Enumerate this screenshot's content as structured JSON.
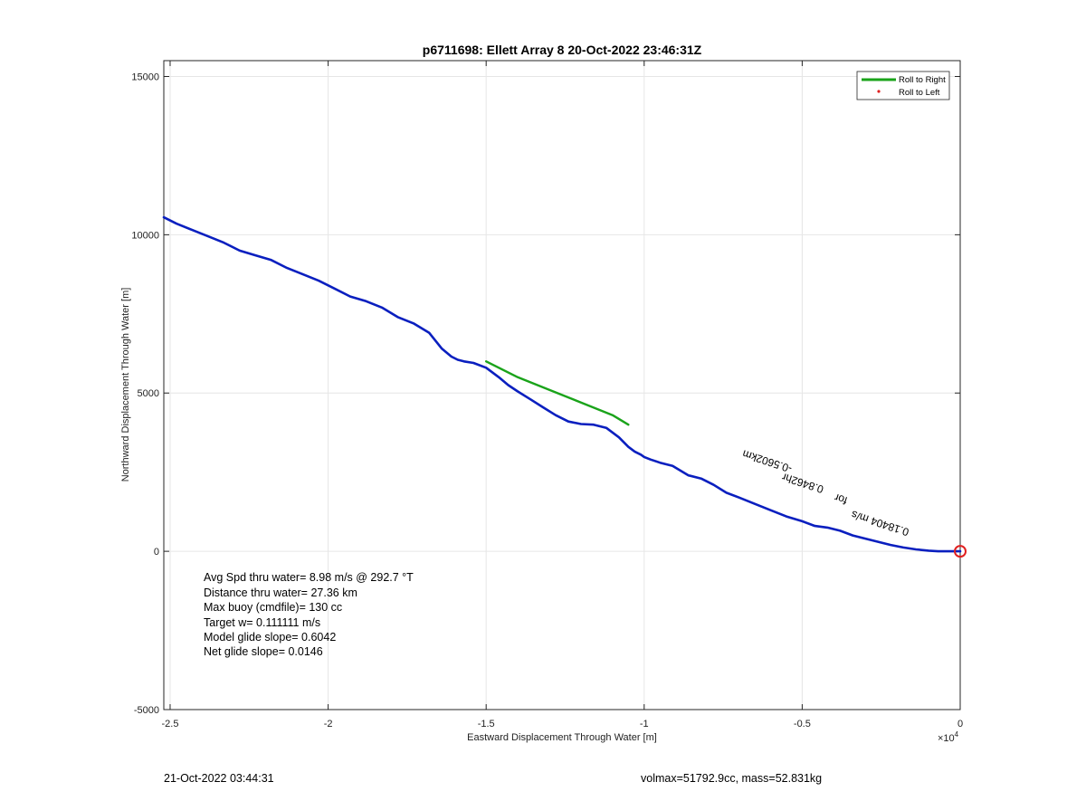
{
  "chart_data": {
    "type": "line",
    "title": "p6711698: Ellett Array 8 20-Oct-2022 23:46:31Z",
    "xlabel": "Eastward Displacement Through Water [m]",
    "ylabel": "Northward Displacement Through Water [m]",
    "x_multiplier_label": "×10",
    "x_multiplier_exponent": "4",
    "xlim": [
      -25200,
      0
    ],
    "ylim": [
      -5000,
      15500
    ],
    "grid": true,
    "legend_position": "top-right",
    "x_ticks": [
      {
        "value": -25000,
        "label": "-2.5"
      },
      {
        "value": -20000,
        "label": "-2"
      },
      {
        "value": -15000,
        "label": "-1.5"
      },
      {
        "value": -10000,
        "label": "-1"
      },
      {
        "value": -5000,
        "label": "-0.5"
      },
      {
        "value": 0,
        "label": "0"
      }
    ],
    "y_ticks": [
      {
        "value": -5000,
        "label": "-5000"
      },
      {
        "value": 0,
        "label": "0"
      },
      {
        "value": 5000,
        "label": "5000"
      },
      {
        "value": 10000,
        "label": "10000"
      },
      {
        "value": 15000,
        "label": "15000"
      }
    ],
    "legend": [
      {
        "label": "Roll to Right",
        "color": "#1aa31a",
        "marker": "line"
      },
      {
        "label": "Roll to Left",
        "color": "#e02020",
        "marker": "dot"
      }
    ],
    "series": [
      {
        "color": "#0a1fbf",
        "x": [
          -25200,
          -24800,
          -24300,
          -23800,
          -23300,
          -22800,
          -22300,
          -21800,
          -21300,
          -20800,
          -20300,
          -19800,
          -19300,
          -18800,
          -18300,
          -17800,
          -17300,
          -16800,
          -16400,
          -16100,
          -15900,
          -15700,
          -15400,
          -15000,
          -14600,
          -14300,
          -14000,
          -13600,
          -13200,
          -12800,
          -12400,
          -12000,
          -11600,
          -11200,
          -10800,
          -10500,
          -10300,
          -10100,
          -10000,
          -9800,
          -9500,
          -9100,
          -8600,
          -8200,
          -7800,
          -7400,
          -7000,
          -6500,
          -6000,
          -5500,
          -5000,
          -4600,
          -4200,
          -3800,
          -3400,
          -3000,
          -2600,
          -2200,
          -1800,
          -1400,
          -1000,
          -700,
          -400,
          -150,
          0
        ],
        "y": [
          10550,
          10350,
          10150,
          9950,
          9750,
          9500,
          9350,
          9200,
          8950,
          8750,
          8550,
          8300,
          8050,
          7900,
          7700,
          7400,
          7200,
          6900,
          6400,
          6150,
          6050,
          6000,
          5950,
          5800,
          5500,
          5250,
          5050,
          4800,
          4550,
          4300,
          4100,
          4020,
          4000,
          3900,
          3600,
          3300,
          3150,
          3050,
          2980,
          2900,
          2800,
          2700,
          2400,
          2300,
          2100,
          1850,
          1700,
          1500,
          1300,
          1100,
          950,
          800,
          750,
          650,
          500,
          400,
          300,
          200,
          120,
          60,
          20,
          0,
          0,
          0,
          0
        ]
      },
      {
        "name": "Roll to Right",
        "color": "#1aa31a",
        "x": [
          -15000,
          -14000,
          -13000,
          -12000,
          -11000,
          -10500
        ],
        "y": [
          6000,
          5500,
          5100,
          4700,
          4300,
          4000
        ]
      }
    ],
    "annotations": [
      {
        "text": "-0.5602km",
        "x": -5300,
        "y": 2700,
        "rotation_deg": 18
      },
      {
        "text": "0.8462hr",
        "x": -4300,
        "y": 2050,
        "rotation_deg": 18
      },
      {
        "text": "for",
        "x": -3550,
        "y": 1700,
        "rotation_deg": 18
      },
      {
        "text": "0.18404 m/s",
        "x": -1600,
        "y": 700,
        "rotation_deg": 18
      }
    ],
    "marker": {
      "x": 0,
      "y": 0,
      "color": "#e02020"
    }
  },
  "stats": [
    "Avg Spd thru water=  8.98 m/s @ 292.7 °T",
    "Distance thru water= 27.36 km",
    "Max buoy (cmdfile)= 130 cc",
    "Target w= 0.111111 m/s",
    "Model glide slope= 0.6042",
    "Net glide slope= 0.0146"
  ],
  "footer": {
    "left": "21-Oct-2022 03:44:31",
    "right": "volmax=51792.9cc, mass=52.831kg"
  }
}
